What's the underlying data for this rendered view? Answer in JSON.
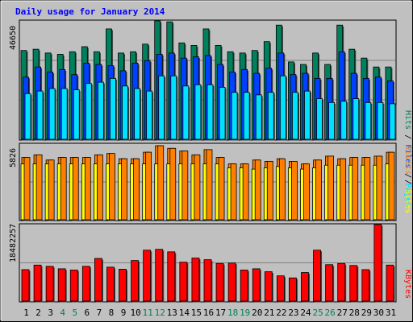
{
  "title": "Daily usage for January 2014",
  "colors": {
    "hits": "#00805c",
    "files": "#0040ff",
    "pages": "#00e0ff",
    "visits": "#ff8000",
    "sites": "#ffff00",
    "kbytes": "#ff0000",
    "weekend": "#00805c",
    "weekday": "#000000",
    "panel": "#c0c0c0"
  },
  "legend": {
    "pages": "Pages",
    "files": "Files",
    "hits": "Hits",
    "visits": "Visits",
    "sites": "Sites",
    "kbytes": "KBytes",
    "sep": "/"
  },
  "chart_data": [
    {
      "type": "bar",
      "panel": "top",
      "ymax_label": "46650",
      "ylim": [
        0,
        46650
      ],
      "categories": [
        "1",
        "2",
        "3",
        "4",
        "5",
        "6",
        "7",
        "8",
        "9",
        "10",
        "11",
        "12",
        "13",
        "14",
        "15",
        "16",
        "17",
        "18",
        "19",
        "20",
        "21",
        "22",
        "23",
        "24",
        "25",
        "26",
        "27",
        "28",
        "29",
        "30",
        "31"
      ],
      "weekend_days": [
        "4",
        "5",
        "11",
        "12",
        "18",
        "19",
        "25",
        "26"
      ],
      "series": [
        {
          "name": "Hits",
          "values": [
            35000,
            35500,
            34000,
            33500,
            34500,
            36500,
            34500,
            43500,
            34000,
            34500,
            37500,
            46650,
            46300,
            38000,
            37000,
            43500,
            37000,
            34500,
            34000,
            35000,
            38500,
            45000,
            30500,
            29500,
            34000,
            29500,
            45000,
            35500,
            32000,
            28500,
            28500
          ]
        },
        {
          "name": "Files",
          "values": [
            24500,
            28500,
            26500,
            27500,
            25500,
            30000,
            29500,
            29000,
            27000,
            30000,
            31000,
            33500,
            34000,
            32000,
            32500,
            33000,
            29500,
            26500,
            27500,
            26000,
            28000,
            34000,
            25500,
            26000,
            24000,
            24000,
            34500,
            26000,
            24000,
            24500,
            23000
          ]
        },
        {
          "name": "Pages",
          "values": [
            18000,
            19000,
            20000,
            20000,
            19500,
            22000,
            22500,
            24000,
            21000,
            20000,
            19000,
            25000,
            25000,
            21000,
            21500,
            21500,
            20500,
            18500,
            18500,
            17500,
            18500,
            25000,
            18500,
            19000,
            16000,
            14500,
            15000,
            16000,
            14500,
            14500,
            14000
          ]
        }
      ]
    },
    {
      "type": "bar",
      "panel": "middle",
      "ymax_label": "5826",
      "ylim": [
        0,
        5826
      ],
      "categories": [
        "1",
        "2",
        "3",
        "4",
        "5",
        "6",
        "7",
        "8",
        "9",
        "10",
        "11",
        "12",
        "13",
        "14",
        "15",
        "16",
        "17",
        "18",
        "19",
        "20",
        "21",
        "22",
        "23",
        "24",
        "25",
        "26",
        "27",
        "28",
        "29",
        "30",
        "31"
      ],
      "series": [
        {
          "name": "Visits",
          "values": [
            4800,
            5000,
            4600,
            4800,
            4800,
            4800,
            5000,
            5100,
            4700,
            4700,
            5200,
            5700,
            5500,
            5300,
            5000,
            5400,
            4800,
            4300,
            4300,
            4600,
            4500,
            4700,
            4500,
            4300,
            4600,
            4900,
            4700,
            4800,
            4800,
            4900,
            5200
          ]
        },
        {
          "name": "Sites",
          "values": [
            4300,
            4300,
            4300,
            4300,
            4300,
            4300,
            4300,
            4300,
            4300,
            4300,
            4300,
            4300,
            4300,
            4300,
            4300,
            4300,
            4300,
            4000,
            4000,
            3900,
            4000,
            4100,
            4000,
            3900,
            4000,
            4200,
            4200,
            4200,
            4200,
            4200,
            4300
          ]
        }
      ]
    },
    {
      "type": "bar",
      "panel": "bottom",
      "ymax_label": "18482257",
      "ylim": [
        0,
        18482257
      ],
      "categories": [
        "1",
        "2",
        "3",
        "4",
        "5",
        "6",
        "7",
        "8",
        "9",
        "10",
        "11",
        "12",
        "13",
        "14",
        "15",
        "16",
        "17",
        "18",
        "19",
        "20",
        "21",
        "22",
        "23",
        "24",
        "25",
        "26",
        "27",
        "28",
        "29",
        "30",
        "31"
      ],
      "series": [
        {
          "name": "KBytes",
          "values": [
            7600,
            8700,
            8400,
            7800,
            7500,
            8400,
            10300,
            8200,
            7700,
            9800,
            12300,
            12500,
            11900,
            9400,
            10400,
            10000,
            9100,
            9200,
            7500,
            7800,
            7100,
            6100,
            5600,
            6900,
            12300,
            8800,
            9100,
            8600,
            7600,
            18482,
            8700
          ]
        }
      ]
    }
  ]
}
